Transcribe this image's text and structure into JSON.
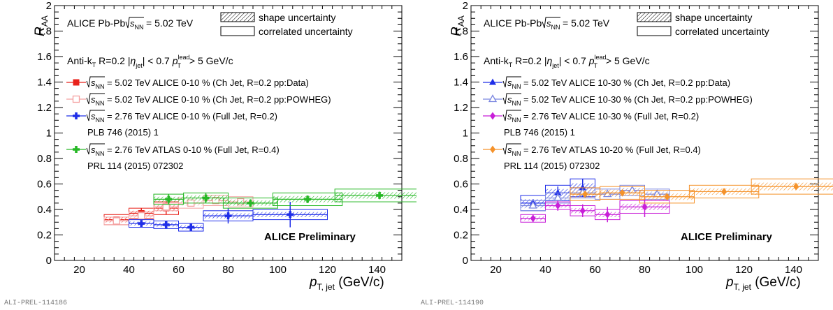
{
  "chart_data": [
    {
      "type": "scatter",
      "figure_id": "ALI-PREL-114186",
      "ylabel_main": "R",
      "ylabel_sub": "AA",
      "xlabel_main": "p",
      "xlabel_sub": "T, jet",
      "xlabel_unit": "(GeV/c)",
      "xlim": [
        10,
        150
      ],
      "ylim": [
        0,
        2
      ],
      "xticks": [
        "20",
        "40",
        "60",
        "80",
        "100",
        "120",
        "140"
      ],
      "yticks": [
        "0",
        "0.2",
        "0.4",
        "0.6",
        "0.8",
        "1",
        "1.2",
        "1.4",
        "1.6",
        "1.8",
        "2"
      ],
      "header_system": "ALICE Pb-Pb",
      "header_energy": "= 5.02 TeV",
      "cut_algo": "Anti-k",
      "cut_R": "R=0.2",
      "cut_eta": "< 0.7",
      "cut_lead": "> 5 GeV/c",
      "uncertainty_legend": [
        "shape uncertainty",
        "correlated uncertainty"
      ],
      "preliminary": "ALICE Preliminary",
      "references": [
        "PLB 746 (2015) 1",
        "PRL 114 (2015) 072302"
      ],
      "series": [
        {
          "name": "= 5.02 TeV ALICE 0-10 % (Ch Jet, R=0.2 pp:Data)",
          "color": "#e8221b",
          "marker": "square",
          "x": [
            35,
            45,
            55
          ],
          "xerr": [
            5,
            5,
            5
          ],
          "y": [
            0.32,
            0.37,
            0.41
          ],
          "yerr": [
            0.02,
            0.04,
            0.05
          ],
          "sys": [
            0.04,
            0.04,
            0.05
          ]
        },
        {
          "name": "= 5.02 TeV ALICE 0-10 % (Ch Jet, R=0.2 pp:POWHEG)",
          "color": "#f4a0a0",
          "marker": "open-square",
          "x": [
            35,
            45,
            55,
            65,
            75,
            85
          ],
          "xerr": [
            5,
            5,
            5,
            5,
            5,
            5
          ],
          "y": [
            0.31,
            0.35,
            0.42,
            0.45,
            0.47,
            0.46
          ],
          "yerr": [
            0,
            0,
            0,
            0,
            0,
            0
          ],
          "sys": [
            0.03,
            0.03,
            0.03,
            0.04,
            0.04,
            0.04
          ]
        },
        {
          "name": "= 2.76 TeV ALICE 0-10 % (Full Jet, R=0.2)",
          "color": "#1f2ee8",
          "marker": "cross",
          "x": [
            45,
            55,
            65,
            80,
            105
          ],
          "xerr": [
            5,
            5,
            5,
            10,
            15
          ],
          "y": [
            0.29,
            0.28,
            0.26,
            0.35,
            0.36
          ],
          "yerr": [
            0.02,
            0.03,
            0.03,
            0.06,
            0.1
          ],
          "sys": [
            0.03,
            0.03,
            0.03,
            0.04,
            0.04
          ]
        },
        {
          "name": "= 2.76 TeV ATLAS 0-10 % (Full Jet, R=0.4)",
          "color": "#27b826",
          "marker": "cross",
          "x": [
            56,
            71,
            89,
            112,
            141
          ],
          "xerr": [
            6,
            9,
            11,
            14,
            18
          ],
          "y": [
            0.48,
            0.49,
            0.45,
            0.48,
            0.51
          ],
          "yerr": [
            0.04,
            0.04,
            0.03,
            0.03,
            0.03
          ],
          "sys": [
            0.04,
            0.04,
            0.04,
            0.05,
            0.05
          ]
        }
      ]
    },
    {
      "type": "scatter",
      "figure_id": "ALI-PREL-114190",
      "ylabel_main": "R",
      "ylabel_sub": "AA",
      "xlabel_main": "p",
      "xlabel_sub": "T, jet",
      "xlabel_unit": "(GeV/c)",
      "xlim": [
        10,
        150
      ],
      "ylim": [
        0,
        2
      ],
      "xticks": [
        "20",
        "40",
        "60",
        "80",
        "100",
        "120",
        "140"
      ],
      "yticks": [
        "0",
        "0.2",
        "0.4",
        "0.6",
        "0.8",
        "1",
        "1.2",
        "1.4",
        "1.6",
        "1.8",
        "2"
      ],
      "header_system": "ALICE Pb-Pb",
      "header_energy": "= 5.02 TeV",
      "cut_algo": "Anti-k",
      "cut_R": "R=0.2",
      "cut_eta": "< 0.7",
      "cut_lead": "> 5 GeV/c",
      "uncertainty_legend": [
        "shape uncertainty",
        "correlated uncertainty"
      ],
      "preliminary": "ALICE Preliminary",
      "references": [
        "PLB 746 (2015) 1",
        "PRL 114 (2015) 072302"
      ],
      "series": [
        {
          "name": "= 5.02 TeV ALICE 10-30 % (Ch Jet, R=0.2 pp:Data)",
          "color": "#1f2ee8",
          "marker": "triangle",
          "x": [
            35,
            45,
            55
          ],
          "xerr": [
            5,
            5,
            5
          ],
          "y": [
            0.45,
            0.53,
            0.57
          ],
          "yerr": [
            0.03,
            0.05,
            0.07
          ],
          "sys": [
            0.06,
            0.06,
            0.07
          ]
        },
        {
          "name": "= 5.02 TeV ALICE 10-30 % (Ch Jet, R=0.2 pp:POWHEG)",
          "color": "#7a86e0",
          "marker": "open-triangle",
          "x": [
            35,
            45,
            55,
            65,
            75,
            85
          ],
          "xerr": [
            5,
            5,
            5,
            5,
            5,
            5
          ],
          "y": [
            0.43,
            0.49,
            0.53,
            0.52,
            0.55,
            0.52
          ],
          "yerr": [
            0,
            0,
            0,
            0,
            0,
            0
          ],
          "sys": [
            0.04,
            0.04,
            0.04,
            0.04,
            0.04,
            0.04
          ]
        },
        {
          "name": "= 2.76 TeV ALICE 10-30 % (Full Jet, R=0.2)",
          "color": "#c81fd8",
          "marker": "diamond",
          "x": [
            35,
            45,
            55,
            65,
            80
          ],
          "xerr": [
            5,
            5,
            5,
            5,
            10
          ],
          "y": [
            0.33,
            0.43,
            0.39,
            0.36,
            0.42
          ],
          "yerr": [
            0.03,
            0.04,
            0.05,
            0.06,
            0.08
          ],
          "sys": [
            0.03,
            0.03,
            0.04,
            0.04,
            0.05
          ]
        },
        {
          "name": "= 2.76 TeV ATLAS 10-20 % (Full Jet, R=0.4)",
          "color": "#f5922a",
          "marker": "diamond",
          "x": [
            56,
            71,
            89,
            112,
            141
          ],
          "xerr": [
            6,
            9,
            11,
            14,
            18
          ],
          "y": [
            0.52,
            0.53,
            0.5,
            0.54,
            0.58
          ],
          "yerr": [
            0.02,
            0.02,
            0.02,
            0.02,
            0.02
          ],
          "sys": [
            0.05,
            0.05,
            0.05,
            0.05,
            0.06
          ]
        }
      ]
    }
  ]
}
